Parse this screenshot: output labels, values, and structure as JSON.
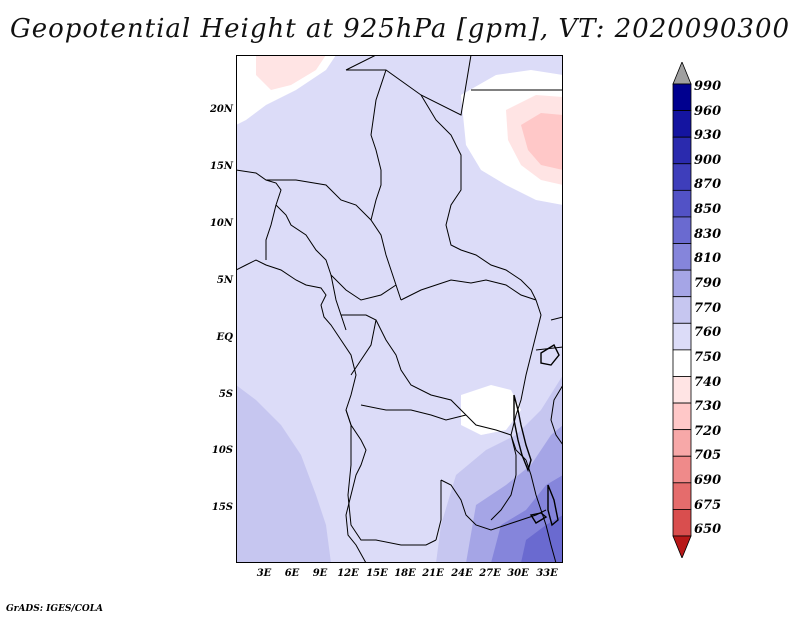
{
  "title": "Geopotential Height at 925hPa [gpm], VT: 2020090300",
  "credit": "GrADS: IGES/COLA",
  "lat_ticks": [
    "20N",
    "15N",
    "10N",
    "5N",
    "EQ",
    "5S",
    "10S",
    "15S"
  ],
  "lon_ticks": [
    "3E",
    "6E",
    "9E",
    "12E",
    "15E",
    "18E",
    "21E",
    "24E",
    "27E",
    "30E",
    "33E"
  ],
  "colorbar": {
    "levels": [
      "990",
      "960",
      "930",
      "900",
      "870",
      "850",
      "830",
      "810",
      "790",
      "770",
      "760",
      "750",
      "740",
      "730",
      "720",
      "705",
      "690",
      "675",
      "650"
    ],
    "colors": [
      "#00008f",
      "#1414a0",
      "#2a2aae",
      "#3e3ebb",
      "#5252c6",
      "#6a6ad0",
      "#8585db",
      "#a5a5e6",
      "#c6c6f0",
      "#dcdcf8",
      "#ffffff",
      "#ffe4e4",
      "#ffc8c8",
      "#f7a8a8",
      "#ef8a8a",
      "#e56c6c",
      "#d94e4e",
      "#c93030",
      "#b81818"
    ]
  }
}
